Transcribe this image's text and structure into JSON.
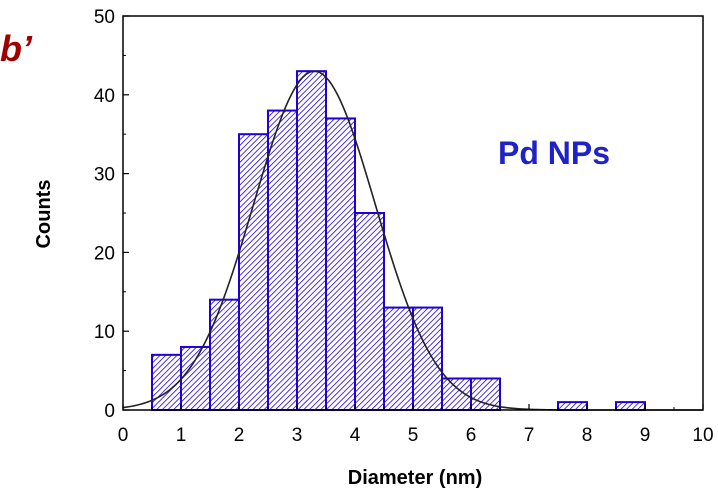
{
  "panel_label": "b’",
  "chart_data": {
    "type": "bar",
    "title": "",
    "annotation": "Pd NPs",
    "xlabel": "Diameter (nm)",
    "ylabel": "Counts",
    "xlim": [
      0,
      10
    ],
    "ylim": [
      0,
      50
    ],
    "xticks": [
      "0",
      "1",
      "2",
      "3",
      "4",
      "5",
      "6",
      "7",
      "8",
      "9",
      "10"
    ],
    "yticks": [
      "0",
      "10",
      "20",
      "30",
      "40",
      "50"
    ],
    "bin_width": 0.5,
    "x": [
      0.5,
      1.0,
      1.5,
      2.0,
      2.5,
      3.0,
      3.5,
      4.0,
      4.5,
      5.0,
      5.5,
      6.0,
      7.5,
      8.5
    ],
    "values": [
      7,
      8,
      14,
      35,
      38,
      43,
      37,
      25,
      13,
      13,
      4,
      4,
      1,
      1
    ],
    "fit": {
      "type": "gaussian",
      "amplitude": 43,
      "mean": 3.3,
      "sigma": 1.05
    },
    "grid": false,
    "colors": {
      "bar_edge": "#1f00d6",
      "hatch": "#1f00d6",
      "fit_line": "#222222",
      "annotation": "#1f22c8",
      "panel_label": "#a00000",
      "axis": "#000000"
    }
  }
}
